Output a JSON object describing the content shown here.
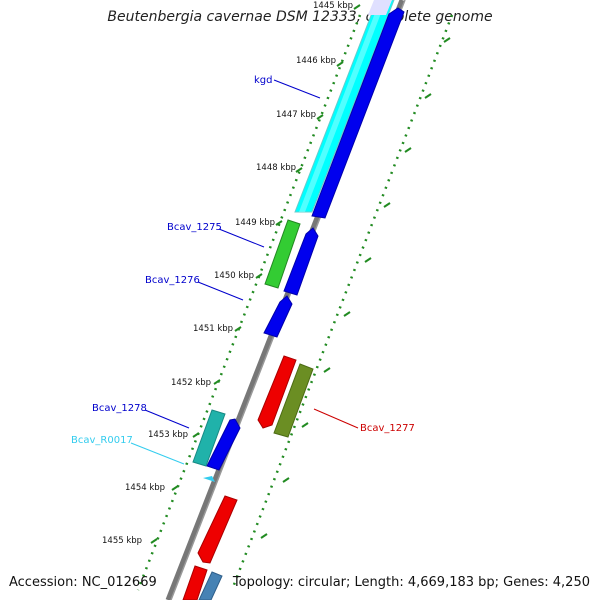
{
  "title": "Beutenbergia cavernae DSM 12333, complete genome",
  "accession_text": "Accession: NC_012669",
  "summary_text": "Topology: circular; Length: 4,669,183 bp; Genes: 4,250",
  "ticks": [
    "1445 kbp",
    "1446 kbp",
    "1447 kbp",
    "1448 kbp",
    "1449 kbp",
    "1450 kbp",
    "1451 kbp",
    "1452 kbp",
    "1453 kbp",
    "1454 kbp",
    "1455 kbp"
  ],
  "gene_labels": {
    "kgd": "kgd",
    "bcav_1275": "Bcav_1275",
    "bcav_1276": "Bcav_1276",
    "bcav_1278": "Bcav_1278",
    "bcav_r0017": "Bcav_R0017",
    "bcav_1277": "Bcav_1277"
  },
  "colors": {
    "cyan": "#00ffff",
    "blue": "#0000ee",
    "green": "#33cc33",
    "red": "#ee0000",
    "olive": "#6b8e23",
    "teal": "#20b2aa",
    "steel": "#4682b4",
    "label_blue": "#0000cc",
    "label_cyan": "#33ccee",
    "label_red": "#cc0000"
  }
}
